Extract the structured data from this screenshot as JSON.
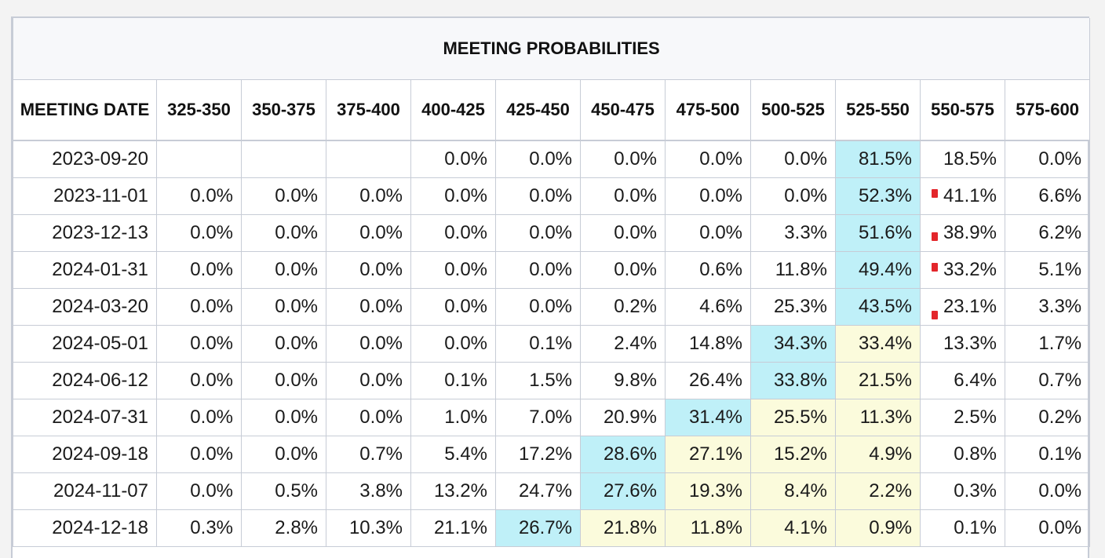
{
  "table": {
    "title": "MEETING PROBABILITIES",
    "date_header": "MEETING DATE",
    "ranges": [
      "325-350",
      "350-375",
      "375-400",
      "400-425",
      "425-450",
      "450-475",
      "475-500",
      "500-525",
      "525-550",
      "550-575",
      "575-600"
    ],
    "rows": [
      {
        "date": "2023-09-20",
        "values": [
          "",
          "",
          "",
          "0.0%",
          "0.0%",
          "0.0%",
          "0.0%",
          "0.0%",
          "81.5%",
          "18.5%",
          "0.0%"
        ],
        "highlight_blue": 8,
        "highlight_yellow": null,
        "marker_col": null
      },
      {
        "date": "2023-11-01",
        "values": [
          "0.0%",
          "0.0%",
          "0.0%",
          "0.0%",
          "0.0%",
          "0.0%",
          "0.0%",
          "0.0%",
          "52.3%",
          "41.1%",
          "6.6%"
        ],
        "highlight_blue": 8,
        "highlight_yellow": null,
        "marker_col": 9
      },
      {
        "date": "2023-12-13",
        "values": [
          "0.0%",
          "0.0%",
          "0.0%",
          "0.0%",
          "0.0%",
          "0.0%",
          "0.0%",
          "3.3%",
          "51.6%",
          "38.9%",
          "6.2%"
        ],
        "highlight_blue": 8,
        "highlight_yellow": null,
        "marker_col": 9
      },
      {
        "date": "2024-01-31",
        "values": [
          "0.0%",
          "0.0%",
          "0.0%",
          "0.0%",
          "0.0%",
          "0.0%",
          "0.6%",
          "11.8%",
          "49.4%",
          "33.2%",
          "5.1%"
        ],
        "highlight_blue": 8,
        "highlight_yellow": null,
        "marker_col": 9
      },
      {
        "date": "2024-03-20",
        "values": [
          "0.0%",
          "0.0%",
          "0.0%",
          "0.0%",
          "0.0%",
          "0.2%",
          "4.6%",
          "25.3%",
          "43.5%",
          "23.1%",
          "3.3%"
        ],
        "highlight_blue": 8,
        "highlight_yellow": null,
        "marker_col": 9
      },
      {
        "date": "2024-05-01",
        "values": [
          "0.0%",
          "0.0%",
          "0.0%",
          "0.0%",
          "0.1%",
          "2.4%",
          "14.8%",
          "34.3%",
          "33.4%",
          "13.3%",
          "1.7%"
        ],
        "highlight_blue": 7,
        "highlight_yellow": 8,
        "marker_col": null
      },
      {
        "date": "2024-06-12",
        "values": [
          "0.0%",
          "0.0%",
          "0.0%",
          "0.1%",
          "1.5%",
          "9.8%",
          "26.4%",
          "33.8%",
          "21.5%",
          "6.4%",
          "0.7%"
        ],
        "highlight_blue": 7,
        "highlight_yellow": 8,
        "marker_col": null
      },
      {
        "date": "2024-07-31",
        "values": [
          "0.0%",
          "0.0%",
          "0.0%",
          "1.0%",
          "7.0%",
          "20.9%",
          "31.4%",
          "25.5%",
          "11.3%",
          "2.5%",
          "0.2%"
        ],
        "highlight_blue": 6,
        "highlight_yellow": [
          7,
          8
        ],
        "marker_col": null
      },
      {
        "date": "2024-09-18",
        "values": [
          "0.0%",
          "0.0%",
          "0.7%",
          "5.4%",
          "17.2%",
          "28.6%",
          "27.1%",
          "15.2%",
          "4.9%",
          "0.8%",
          "0.1%"
        ],
        "highlight_blue": 5,
        "highlight_yellow": [
          6,
          7,
          8
        ],
        "marker_col": null
      },
      {
        "date": "2024-11-07",
        "values": [
          "0.0%",
          "0.5%",
          "3.8%",
          "13.2%",
          "24.7%",
          "27.6%",
          "19.3%",
          "8.4%",
          "2.2%",
          "0.3%",
          "0.0%"
        ],
        "highlight_blue": 5,
        "highlight_yellow": [
          6,
          7,
          8
        ],
        "marker_col": null
      },
      {
        "date": "2024-12-18",
        "values": [
          "0.3%",
          "2.8%",
          "10.3%",
          "21.1%",
          "26.7%",
          "21.8%",
          "11.8%",
          "4.1%",
          "0.9%",
          "0.1%",
          "0.0%"
        ],
        "highlight_blue": 4,
        "highlight_yellow": [
          5,
          6,
          7,
          8
        ],
        "marker_col": null
      }
    ]
  },
  "colors": {
    "highlight_blue": "#bff0f8",
    "highlight_yellow": "#fbfbdc",
    "marker": "#e3262b",
    "grid": "#c7ccd6"
  }
}
